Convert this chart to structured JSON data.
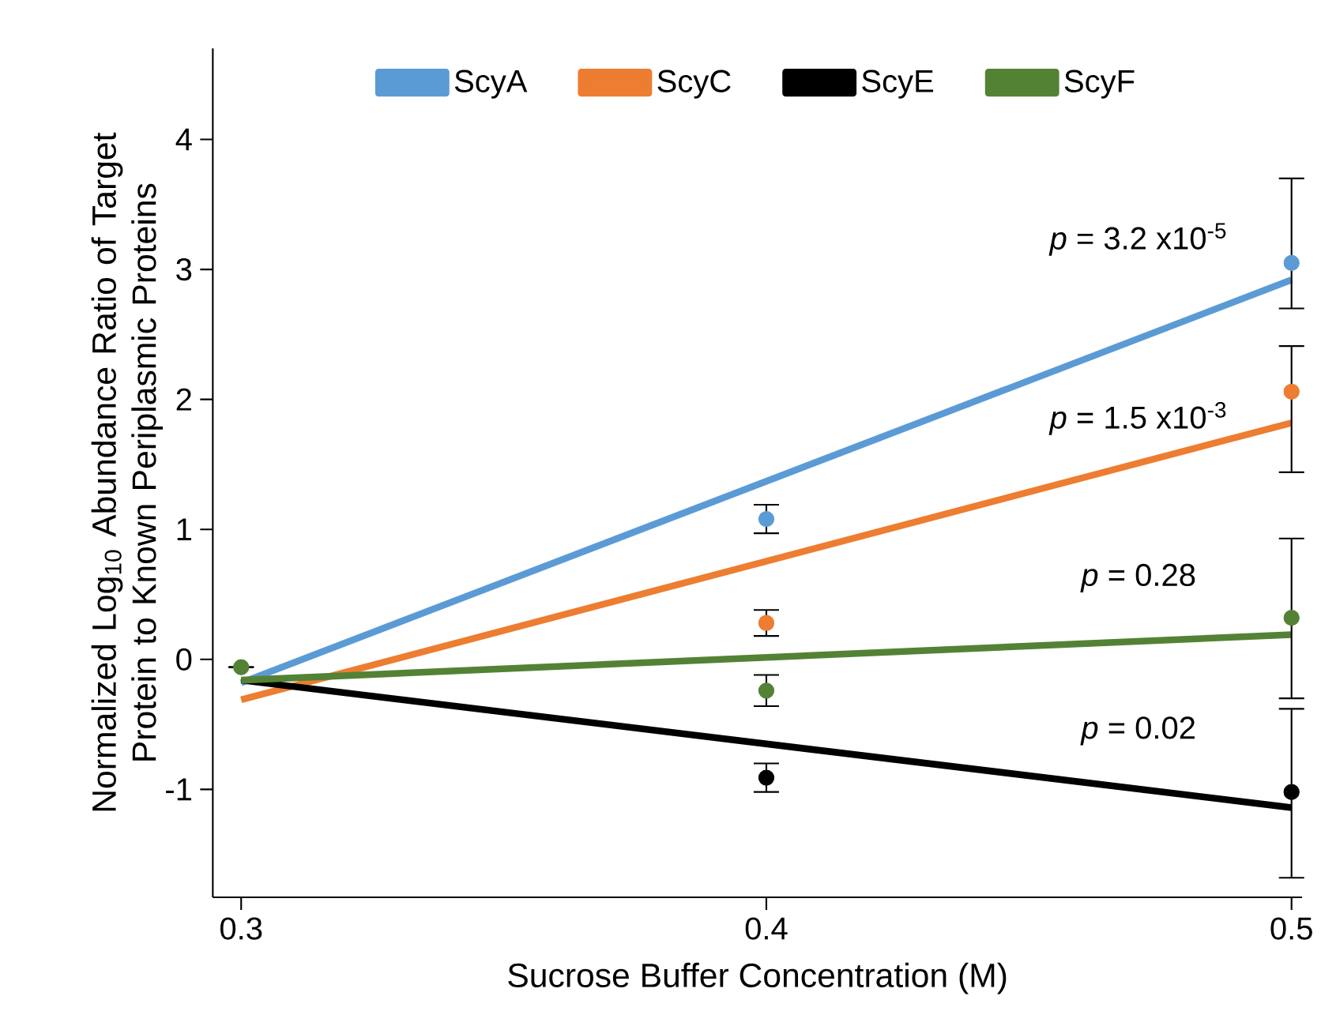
{
  "chart_data": {
    "type": "line",
    "xlabel": "Sucrose  Buffer Concentration (M)",
    "ylabel": "Normalized Log$_{10}$ Abundance Ratio  of Target Protein to Known  Periplasmic Proteins",
    "xlim": [
      0.2946,
      0.502
    ],
    "ylim": [
      -1.83,
      4.7
    ],
    "xticks": [
      0.3,
      0.4,
      0.5
    ],
    "yticks": [
      -1,
      0,
      1,
      2,
      3,
      4
    ],
    "grid": false,
    "legend": "top",
    "series": [
      {
        "name": "ScyA",
        "color": "#5b9bd5",
        "marker": "none",
        "x": [
          0.3,
          0.5
        ],
        "values": [
          -0.18,
          2.92
        ]
      },
      {
        "name": "ScyC",
        "color": "#ed7d31",
        "marker": "none",
        "x": [
          0.3,
          0.5
        ],
        "values": [
          -0.31,
          1.82
        ]
      },
      {
        "name": "ScyE",
        "color": "#000000",
        "marker": "none",
        "x": [
          0.3,
          0.5
        ],
        "values": [
          -0.16,
          -1.14
        ]
      },
      {
        "name": "ScyF",
        "color": "#548235",
        "marker": "none",
        "x": [
          0.3,
          0.5
        ],
        "values": [
          -0.16,
          0.19
        ]
      },
      {
        "type": "scatter",
        "color": "#5b9bd5",
        "marker": "circle",
        "x": [
          0.4,
          0.5
        ],
        "values": [
          1.08,
          3.05
        ],
        "errors": [
          0.11,
          [
            2.7,
            3.7
          ]
        ]
      },
      {
        "type": "scatter",
        "color": "#ed7d31",
        "marker": "circle",
        "x": [
          0.4,
          0.5
        ],
        "values": [
          0.28,
          2.06
        ],
        "errors": [
          0.1,
          [
            1.44,
            2.41
          ]
        ]
      },
      {
        "type": "scatter",
        "color": "#000000",
        "marker": "circle",
        "x": [
          0.4,
          0.5
        ],
        "values": [
          -0.91,
          -1.02
        ],
        "errors": [
          0.11,
          [
            -1.68,
            -0.38
          ]
        ]
      },
      {
        "type": "scatter",
        "color": "#548235",
        "marker": "circle",
        "x": [
          0.3,
          0.4,
          0.5
        ],
        "values": [
          -0.06,
          -0.24,
          0.32
        ],
        "errors": [
          null,
          0.12,
          [
            -0.3,
            0.93
          ]
        ]
      }
    ],
    "annotations": [
      "*p* = 3.2 x10$^{-5}$",
      "*p* = 1.5 x10$^{-3}$",
      "*p* = 0.28",
      "*p* = 0.02"
    ]
  }
}
